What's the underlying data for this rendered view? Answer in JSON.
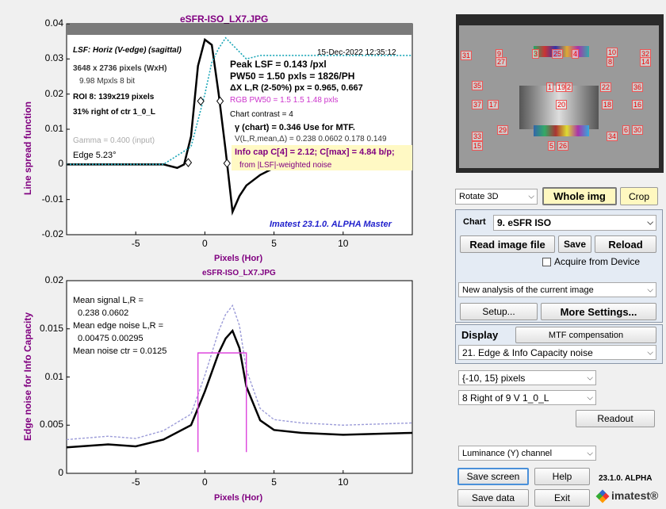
{
  "colors": {
    "black_curve": "#000000",
    "cyan_curve": "#1aa6b7",
    "magenta": "#cc33cc",
    "lavender": "#9b9bd8",
    "title": "#800080",
    "accent_bg": "#fff9c4",
    "blue_text": "#1f1fcc"
  },
  "chart_top": {
    "title": "eSFR-ISO_LX7.JPG",
    "ylabel": "Line spread function",
    "xlabel": "Pixels (Hor)",
    "yticks": [
      "0.04",
      "0.03",
      "0.02",
      "0.01",
      "0",
      "-0.01",
      "-0.02"
    ],
    "xticks": [
      "-5",
      "0",
      "5",
      "10"
    ],
    "lsf_title": "LSF: Horiz (V-edge) (sagittal)",
    "info1": "3648 x 2736 pixels (WxH)",
    "info2": "9.98 Mpxls   8 bit",
    "info3": "ROI 8:  139x219 pixels",
    "info4": "31% right of ctr  1_0_L",
    "gamma": "Gamma = 0.400 (input)",
    "edge": "Edge   5.23°",
    "date": "15-Dec-2022 12:35:12",
    "peak": "Peak LSF =  0.143 /pxl",
    "pw50": "PW50 = 1.50 pxls =  1826/PH",
    "dx": "ΔX L,R (2-50%) px = 0.965, 0.667",
    "rgb": "RGB PW50 =    1.5     1.5    1.48 pxls",
    "contrast": "Chart contrast = 4",
    "gamma_chart": "γ (chart) = 0.346  Use for MTF.",
    "v": "V(L,R,mean,Δ) = 0.238  0.0602  0.178  0.149",
    "infocap": "Info cap C[4] = 2.12;  C[max] = 4.84 b/p;",
    "infocap2": "from |LSF|-weighted noise",
    "footer": "Imatest 23.1.0. ALPHA Master"
  },
  "chart_data": [
    {
      "type": "line",
      "title": "eSFR-ISO_LX7.JPG",
      "xlabel": "Pixels (Hor)",
      "ylabel": "Line spread function",
      "xlim": [
        -10,
        15
      ],
      "ylim": [
        -0.02,
        0.04
      ],
      "series": [
        {
          "x": [
            -10,
            -3,
            -2,
            -1.5,
            -1,
            -0.5,
            0,
            0.5,
            1,
            1.5,
            2,
            2.5,
            3,
            4,
            5,
            6,
            8,
            10,
            15
          ],
          "values": [
            0,
            0,
            -0.001,
            0,
            0.008,
            0.028,
            0.0355,
            0.034,
            0.02,
            0.004,
            -0.0135,
            -0.009,
            -0.006,
            -0.003,
            -0.001,
            0,
            0,
            0,
            0
          ]
        },
        {
          "x": [
            -10,
            -3,
            -1,
            0,
            0.5,
            1,
            1.5,
            2,
            2.5,
            3,
            4,
            6,
            10,
            15
          ],
          "values": [
            0,
            0,
            0.005,
            0.02,
            0.029,
            0.033,
            0.036,
            0.034,
            0.032,
            0.03,
            0.031,
            0.031,
            0.031,
            0.031
          ]
        }
      ]
    },
    {
      "type": "line",
      "title": "eSFR-ISO_LX7.JPG",
      "xlabel": "Pixels (Hor)",
      "ylabel": "Edge noise for Info Capacity",
      "xlim": [
        -10,
        15
      ],
      "ylim": [
        0,
        0.02
      ],
      "series": [
        {
          "x": [
            -10,
            -7,
            -5,
            -3,
            -1,
            0,
            1,
            1.5,
            2,
            2.5,
            3,
            4,
            5,
            7,
            10,
            15
          ],
          "values": [
            0.0027,
            0.003,
            0.0028,
            0.0035,
            0.005,
            0.0085,
            0.0125,
            0.014,
            0.0148,
            0.013,
            0.009,
            0.0055,
            0.0045,
            0.0042,
            0.004,
            0.0042
          ]
        }
      ]
    }
  ],
  "chart_bottom": {
    "title": "eSFR-ISO_LX7.JPG",
    "ylabel": "Edge noise for Info Capacity",
    "xlabel": "Pixels (Hor)",
    "yticks": [
      "0.02",
      "0.015",
      "0.01",
      "0.005",
      "0"
    ],
    "xticks": [
      "-5",
      "0",
      "5",
      "10"
    ],
    "t1": "Mean signal L,R =",
    "t2": "0.238  0.0602",
    "t3": "Mean edge noise L,R =",
    "t4": "0.00475  0.00295",
    "t5": "Mean noise ctr = 0.0125"
  },
  "chart_numbers": [
    "31",
    "9",
    "3",
    "25",
    "4",
    "10",
    "32",
    "27",
    "8",
    "14",
    "35",
    "1",
    "19",
    "2",
    "22",
    "36",
    "37",
    "17",
    "20",
    "18",
    "16",
    "29",
    "6",
    "30",
    "33",
    "15",
    "5",
    "26",
    "34"
  ],
  "controls": {
    "rotate": "Rotate 3D",
    "whole_img": "Whole img",
    "crop": "Crop",
    "chart_label": "Chart",
    "chart_value": "9. eSFR ISO",
    "read_image": "Read image file",
    "save": "Save",
    "reload": "Reload",
    "acquire": "Acquire from Device",
    "analysis": "New analysis of the current image",
    "setup": "Setup...",
    "more": "More Settings...",
    "display": "Display",
    "mtf_comp": "MTF compensation",
    "display_value": "21. Edge & Info Capacity noise",
    "range": "{-10, 15} pixels",
    "roi": "8  Right of 9 V    1_0_L",
    "readout": "Readout",
    "channel": "Luminance (Y) channel",
    "save_screen": "Save screen",
    "help": "Help",
    "version": "23.1.0. ALPHA",
    "save_data": "Save data",
    "exit": "Exit",
    "logo": "imatest®"
  }
}
